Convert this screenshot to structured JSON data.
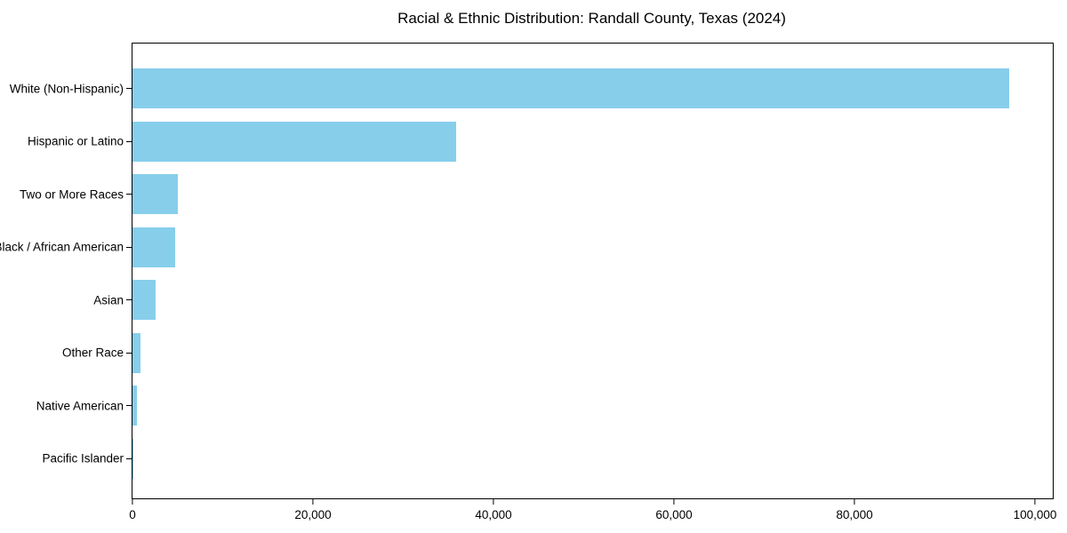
{
  "chart_data": {
    "type": "bar",
    "orientation": "horizontal",
    "title": "Racial & Ethnic Distribution: Randall County, Texas (2024)",
    "categories": [
      "White (Non-Hispanic)",
      "Hispanic or Latino",
      "Two or More Races",
      "Black / African American",
      "Asian",
      "Other Race",
      "Native American",
      "Pacific Islander"
    ],
    "values": [
      97100,
      35900,
      5000,
      4730,
      2590,
      860,
      460,
      60
    ],
    "xlabel": "",
    "ylabel": "",
    "xlim": [
      0,
      101970
    ],
    "xticks": [
      {
        "value": 0,
        "label": "0"
      },
      {
        "value": 20000,
        "label": "20,000"
      },
      {
        "value": 40000,
        "label": "40,000"
      },
      {
        "value": 60000,
        "label": "60,000"
      },
      {
        "value": 80000,
        "label": "80,000"
      },
      {
        "value": 100000,
        "label": "100,000"
      }
    ],
    "bar_color": "#87CEEB",
    "axis_color": "#000000",
    "text_color": "#000000",
    "background_color": "#ffffff",
    "grid": false,
    "legend": null
  }
}
